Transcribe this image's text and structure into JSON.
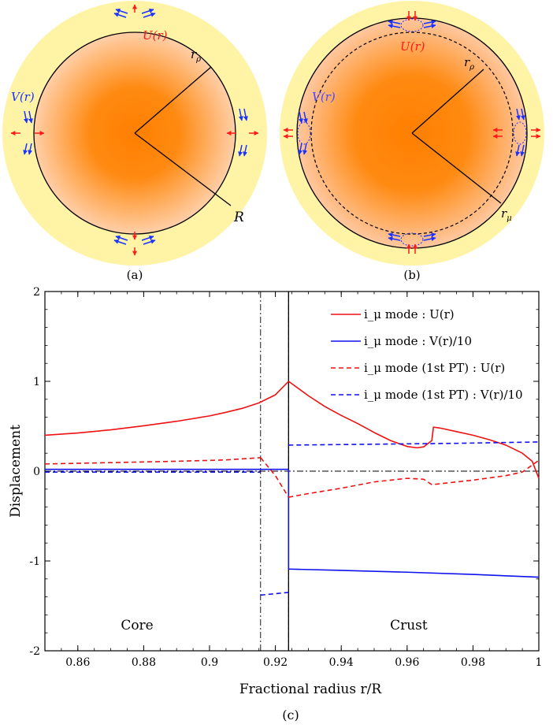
{
  "panels": {
    "a": {
      "caption": "(a)",
      "labels": {
        "U": "U(r)",
        "V": "V(r)",
        "r_rho": "r",
        "r_rho_sub": "ρ",
        "R": "R"
      }
    },
    "b": {
      "caption": "(b)",
      "labels": {
        "U": "U(r)",
        "V": "V(r)",
        "r_rho": "r",
        "r_rho_sub": "ρ",
        "r_mu": "r",
        "r_mu_sub": "μ"
      }
    },
    "c": {
      "caption": "(c)"
    }
  },
  "colors": {
    "crust_yellow": "#fff3a6",
    "core_center": "#ff7f00",
    "core_edge": "#ffcfa8",
    "arrow_red": "#ff1a1a",
    "arrow_blue": "#1a33ff",
    "curve_red": "#ee1111",
    "curve_blue": "#1111ee"
  },
  "chart_data": {
    "type": "line",
    "xlabel": "Fractional radius r/R",
    "ylabel": "Displacement",
    "xlim": [
      0.85,
      1.0
    ],
    "ylim": [
      -2,
      2
    ],
    "xticks": [
      0.86,
      0.88,
      0.9,
      0.92,
      0.94,
      0.96,
      0.98,
      1.0
    ],
    "xtick_labels": [
      "0.86",
      "0.88",
      "0.9",
      "0.92",
      "0.94",
      "0.96",
      "0.98",
      "1"
    ],
    "yticks": [
      -2,
      -1,
      0,
      1,
      2
    ],
    "ytick_labels": [
      "-2",
      "-1",
      "0",
      "1",
      "2"
    ],
    "region_labels": [
      {
        "text": "Core",
        "x": 0.878,
        "y": -1.72
      },
      {
        "text": "Crust",
        "x": 0.9605,
        "y": -1.72
      }
    ],
    "vlines": [
      {
        "x": 0.9155,
        "style": "dashdot"
      },
      {
        "x": 0.924,
        "style": "dashdot"
      },
      {
        "x": 0.924,
        "style": "solid"
      }
    ],
    "hlines": [
      {
        "y": 0,
        "style": "dashdot"
      }
    ],
    "legend_position": "top-right",
    "series": [
      {
        "name": "i_μ mode : U(r)",
        "color": "#ee1111",
        "dash": "solid",
        "segments": [
          [
            [
              0.85,
              0.4
            ],
            [
              0.86,
              0.425
            ],
            [
              0.87,
              0.46
            ],
            [
              0.88,
              0.505
            ],
            [
              0.89,
              0.555
            ],
            [
              0.9,
              0.615
            ],
            [
              0.905,
              0.655
            ],
            [
              0.91,
              0.7
            ],
            [
              0.915,
              0.76
            ],
            [
              0.92,
              0.85
            ],
            [
              0.924,
              1.0
            ]
          ],
          [
            [
              0.924,
              1.0
            ],
            [
              0.93,
              0.84
            ],
            [
              0.935,
              0.72
            ],
            [
              0.94,
              0.62
            ],
            [
              0.945,
              0.53
            ],
            [
              0.95,
              0.43
            ],
            [
              0.955,
              0.34
            ],
            [
              0.96,
              0.275
            ],
            [
              0.963,
              0.26
            ],
            [
              0.965,
              0.27
            ],
            [
              0.9675,
              0.34
            ],
            [
              0.968,
              0.49
            ],
            [
              0.97,
              0.48
            ],
            [
              0.975,
              0.44
            ],
            [
              0.98,
              0.4
            ],
            [
              0.985,
              0.35
            ],
            [
              0.99,
              0.29
            ],
            [
              0.995,
              0.2
            ],
            [
              0.998,
              0.11
            ],
            [
              1.0,
              -0.08
            ]
          ]
        ]
      },
      {
        "name": "i_μ mode : V(r)/10",
        "color": "#1111ee",
        "dash": "solid",
        "segments": [
          [
            [
              0.85,
              0.02
            ],
            [
              0.924,
              0.02
            ]
          ],
          [
            [
              0.924,
              0.02
            ],
            [
              0.924,
              -1.09
            ]
          ],
          [
            [
              0.924,
              -1.09
            ],
            [
              0.94,
              -1.105
            ],
            [
              0.96,
              -1.125
            ],
            [
              0.98,
              -1.15
            ],
            [
              1.0,
              -1.18
            ]
          ]
        ]
      },
      {
        "name": "i_μ mode (1st PT) : U(r)",
        "color": "#ee1111",
        "dash": "dashed",
        "segments": [
          [
            [
              0.85,
              0.08
            ],
            [
              0.87,
              0.095
            ],
            [
              0.89,
              0.11
            ],
            [
              0.905,
              0.125
            ],
            [
              0.9155,
              0.15
            ]
          ],
          [
            [
              0.9155,
              0.15
            ],
            [
              0.92,
              -0.05
            ],
            [
              0.924,
              -0.29
            ]
          ],
          [
            [
              0.924,
              -0.29
            ],
            [
              0.93,
              -0.25
            ],
            [
              0.94,
              -0.19
            ],
            [
              0.95,
              -0.12
            ],
            [
              0.96,
              -0.08
            ],
            [
              0.965,
              -0.09
            ],
            [
              0.9675,
              -0.15
            ],
            [
              0.97,
              -0.14
            ],
            [
              0.98,
              -0.1
            ],
            [
              0.99,
              -0.05
            ],
            [
              0.995,
              -0.01
            ],
            [
              1.0,
              0.12
            ]
          ]
        ]
      },
      {
        "name": "i_μ mode (1st PT) : V(r)/10",
        "color": "#1111ee",
        "dash": "dashed",
        "segments": [
          [
            [
              0.85,
              -0.01
            ],
            [
              0.9155,
              -0.01
            ]
          ],
          [
            [
              0.9155,
              -1.38
            ],
            [
              0.924,
              -1.35
            ]
          ],
          [
            [
              0.924,
              0.29
            ],
            [
              0.95,
              0.3
            ],
            [
              0.975,
              0.31
            ],
            [
              1.0,
              0.325
            ]
          ]
        ]
      }
    ]
  }
}
